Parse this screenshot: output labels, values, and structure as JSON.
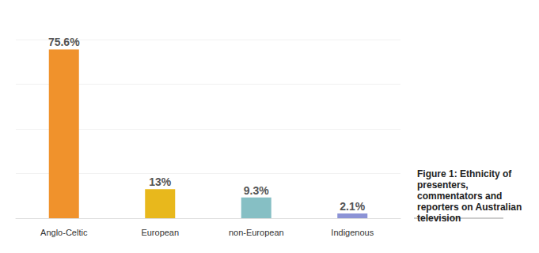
{
  "chart_data": {
    "type": "bar",
    "title": "Figure 1: Ethnicity of presenters, commentators and reporters on Australian television",
    "categories": [
      "Anglo-Celtic",
      "European",
      "non-European",
      "Indigenous"
    ],
    "values": [
      75.6,
      13,
      9.3,
      2.1
    ],
    "value_labels": [
      "75.6%",
      "13%",
      "9.3%",
      "2.1%"
    ],
    "colors": [
      "#f0922c",
      "#e8b81c",
      "#86bfc4",
      "#8c93d6"
    ],
    "ylim": [
      0,
      80
    ],
    "yticks": [
      0,
      20,
      40,
      60,
      80
    ],
    "grid": true,
    "data_labels": true,
    "tick_labels": "x"
  }
}
